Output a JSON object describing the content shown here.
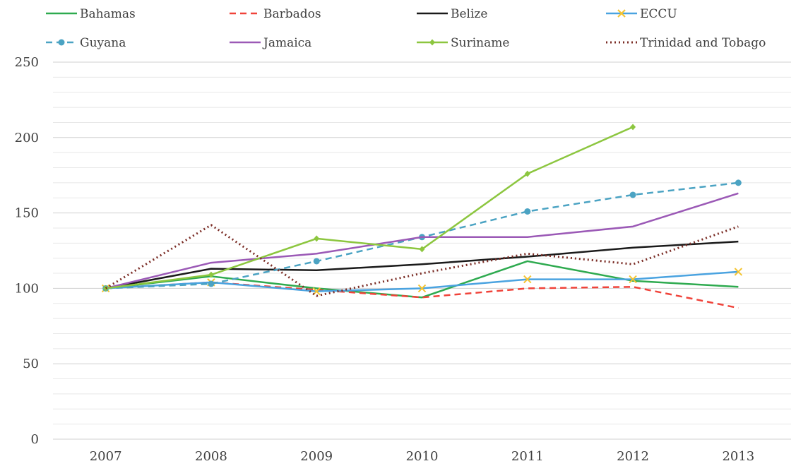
{
  "chart_data": {
    "type": "line",
    "title": "",
    "xlabel": "",
    "ylabel": "",
    "x": [
      "2007",
      "2008",
      "2009",
      "2010",
      "2011",
      "2012",
      "2013"
    ],
    "ylim": [
      0,
      250
    ],
    "yticks": [
      "0",
      "50",
      "100",
      "150",
      "200",
      "250"
    ],
    "grid": true,
    "legend_position": "top",
    "series": [
      {
        "name": "Bahamas",
        "color": "#2eaa4f",
        "dash": "solid",
        "marker": "none",
        "values": [
          100,
          108,
          100,
          94,
          118,
          105,
          101
        ]
      },
      {
        "name": "Barbados",
        "color": "#f0433a",
        "dash": "dashed",
        "marker": "none",
        "values": [
          100,
          104,
          99,
          94,
          100,
          101,
          87
        ]
      },
      {
        "name": "Belize",
        "color": "#1a1a1a",
        "dash": "solid",
        "marker": "none",
        "values": [
          100,
          113,
          112,
          116,
          121,
          127,
          131
        ]
      },
      {
        "name": "ECCU",
        "color": "#4aa3e0",
        "dash": "solid",
        "marker": "x",
        "marker_color": "#f4c430",
        "values": [
          100,
          104,
          98,
          100,
          106,
          106,
          111
        ]
      },
      {
        "name": "Guyana",
        "color": "#4ba3c3",
        "dash": "dashed",
        "marker": "circle",
        "values": [
          100,
          103,
          118,
          134,
          151,
          162,
          170
        ]
      },
      {
        "name": "Jamaica",
        "color": "#9b59b6",
        "dash": "solid",
        "marker": "none",
        "values": [
          100,
          117,
          123,
          134,
          134,
          141,
          163
        ]
      },
      {
        "name": "Suriname",
        "color": "#8cc63f",
        "dash": "solid",
        "marker": "diamond",
        "values": [
          100,
          109,
          133,
          126,
          176,
          207,
          null
        ]
      },
      {
        "name": "Trinidad and Tobago",
        "color": "#7b2d26",
        "dash": "dotted",
        "marker": "none",
        "values": [
          100,
          142,
          95,
          110,
          123,
          116,
          141
        ]
      }
    ]
  }
}
